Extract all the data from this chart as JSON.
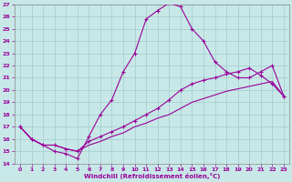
{
  "xlabel": "Windchill (Refroidissement éolien,°C)",
  "bg_color": "#c8e8e8",
  "line_color": "#990099",
  "grid_color": "#a0cccc",
  "xlim_min": -0.5,
  "xlim_max": 23.5,
  "ylim_min": 14,
  "ylim_max": 27,
  "xticks": [
    0,
    1,
    2,
    3,
    4,
    5,
    6,
    7,
    8,
    9,
    10,
    11,
    12,
    13,
    14,
    15,
    16,
    17,
    18,
    19,
    20,
    21,
    22,
    23
  ],
  "yticks": [
    14,
    15,
    16,
    17,
    18,
    19,
    20,
    21,
    22,
    23,
    24,
    25,
    26,
    27
  ],
  "line1_x": [
    0,
    1,
    2,
    3,
    4,
    5,
    6,
    7,
    8,
    9,
    10,
    11,
    12,
    13,
    14,
    15,
    16,
    17,
    18,
    19,
    20,
    21,
    22,
    23
  ],
  "line1_y": [
    17.0,
    16.0,
    15.5,
    15.0,
    14.8,
    14.4,
    16.2,
    18.0,
    19.2,
    21.5,
    23.0,
    25.8,
    26.5,
    27.1,
    26.8,
    25.0,
    24.0,
    22.3,
    21.5,
    21.0,
    21.0,
    21.5,
    22.0,
    19.5
  ],
  "line2_x": [
    0,
    1,
    2,
    3,
    4,
    5,
    6,
    7,
    8,
    9,
    10,
    11,
    12,
    13,
    14,
    15,
    16,
    17,
    18,
    19,
    20,
    21,
    22,
    23
  ],
  "line2_y": [
    17.0,
    16.0,
    15.5,
    15.5,
    15.2,
    15.0,
    15.8,
    16.2,
    16.6,
    17.0,
    17.5,
    18.0,
    18.5,
    19.2,
    20.0,
    20.5,
    20.8,
    21.0,
    21.3,
    21.5,
    21.8,
    21.2,
    20.5,
    19.5
  ],
  "line3_x": [
    0,
    1,
    2,
    3,
    4,
    5,
    6,
    7,
    8,
    9,
    10,
    11,
    12,
    13,
    14,
    15,
    16,
    17,
    18,
    19,
    20,
    21,
    22,
    23
  ],
  "line3_y": [
    17.0,
    16.0,
    15.5,
    15.5,
    15.2,
    15.0,
    15.5,
    15.8,
    16.2,
    16.5,
    17.0,
    17.3,
    17.7,
    18.0,
    18.5,
    19.0,
    19.3,
    19.6,
    19.9,
    20.1,
    20.3,
    20.5,
    20.7,
    19.5
  ]
}
